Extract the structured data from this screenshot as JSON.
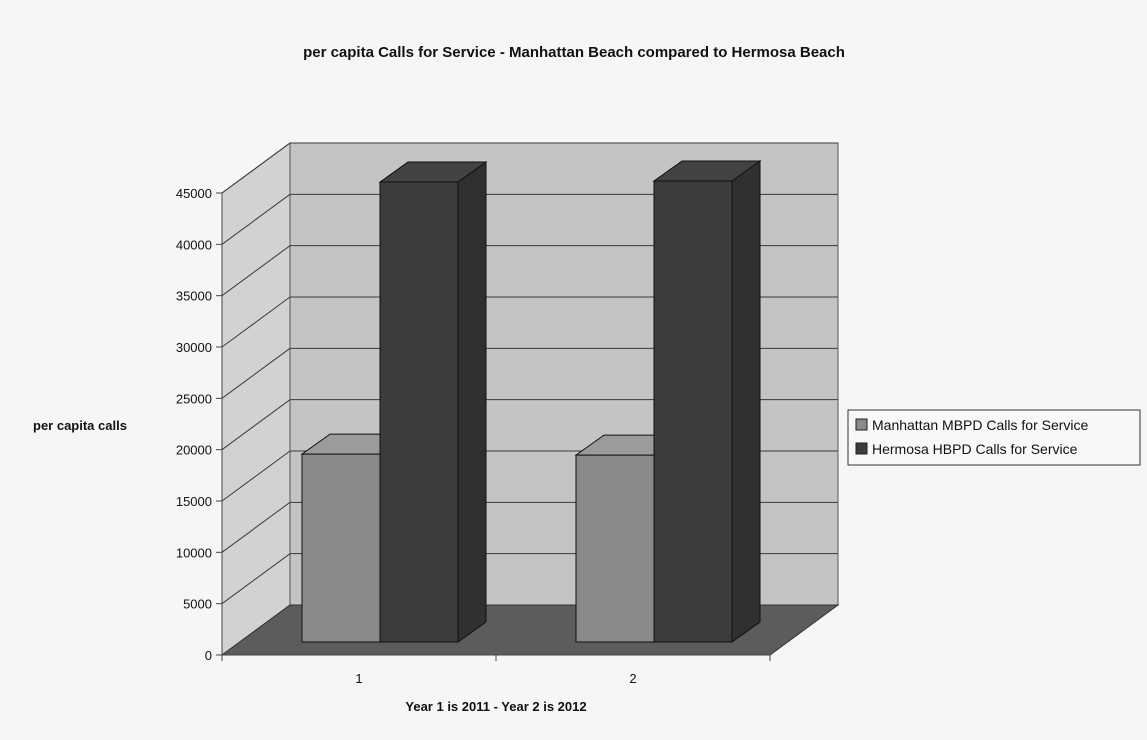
{
  "colors": {
    "background": "#f6f6f4",
    "back_wall": "#c4c4c4",
    "side_wall": "#d2d2d2",
    "floor": "#5c5c5c",
    "gridline": "#3a3a3a",
    "series_manhattan": "#8a8a8a",
    "series_hermosa": "#3c3c3c"
  },
  "chart_data": {
    "type": "bar",
    "style": "3d-clustered-column",
    "title": "per capita Calls for Service - Manhattan Beach compared to Hermosa Beach",
    "xlabel": "Year 1 is 2011 - Year 2 is 2012",
    "ylabel": "per capita calls",
    "categories": [
      "1",
      "2"
    ],
    "ylim": [
      0,
      45000
    ],
    "yticks": [
      0,
      5000,
      10000,
      15000,
      20000,
      25000,
      30000,
      35000,
      40000,
      45000
    ],
    "ytick_labels": [
      "0",
      "5000",
      "10000",
      "15000",
      "20000",
      "25000",
      "30000",
      "35000",
      "40000",
      "45000"
    ],
    "grid": true,
    "legend_position": "right",
    "series": [
      {
        "name": "Manhattan MBPD Calls for Service",
        "values": [
          18300,
          18200
        ]
      },
      {
        "name": "Hermosa HBPD Calls for Service",
        "values": [
          44800,
          44900
        ]
      }
    ]
  }
}
